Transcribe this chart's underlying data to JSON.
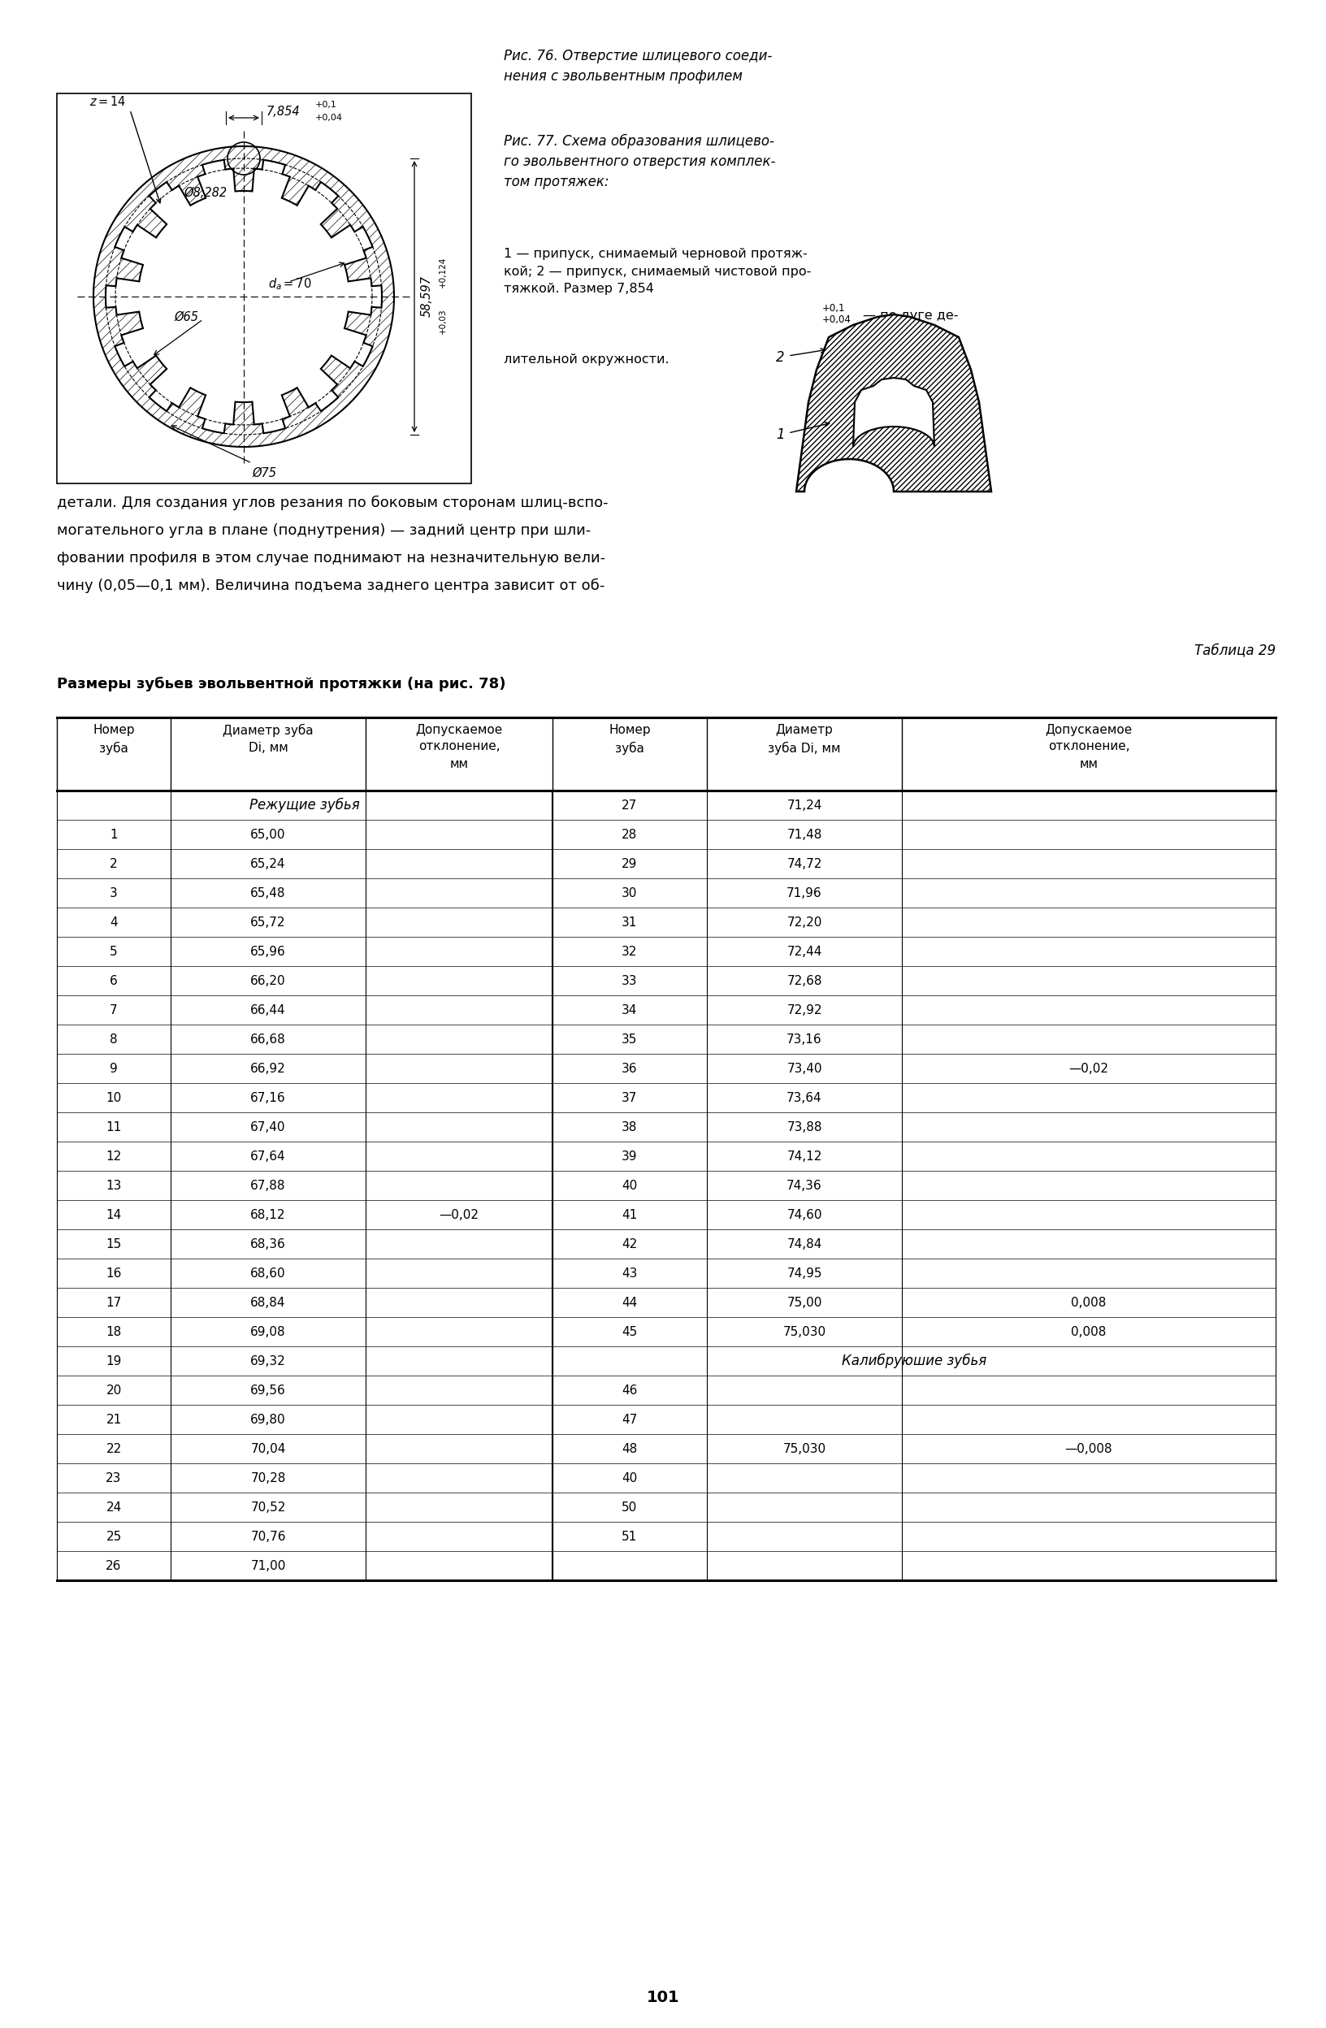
{
  "page_bg": "#ffffff",
  "fig_width": 16.32,
  "fig_height": 24.96,
  "fig76_title": "Рис. 76. Отверстие шлицевого соеди-\nнения с эвольвентным профилем",
  "fig77_title": "Рис. 77. Схема образования шлицево-\nго эвольвентного отверстия комплек-\nтом протяжек:",
  "fig77_body_1": "1",
  "fig77_body_2": " — припуск, снимаемый черновой протяж-\nкой; ",
  "fig77_body_3": "2",
  "fig77_body_4": " — припуск, снимаемый чистовой про-\nтяжкой. Размер 7,854",
  "fig77_body_5": " — по дуге де-\nлительной окружности.",
  "body_text_line1": "детали. Для создания углов резания по боковым сторонам шлиц-вспо-",
  "body_text_line2": "могательного угла в плане (поднутрения) — задний центр при шли-",
  "body_text_line3": "фовании профиля в этом случае поднимают на незначительную вели-",
  "body_text_line4": "чину (0,05—0,1 мм). Величина подъема заднего центра зависит от об-",
  "table_title_right": "Таблица 29",
  "table_heading": "Размеры зубьев эвольвентной протяжки (на рис. 78)",
  "col_h1a": "Номер",
  "col_h1b": "зуба",
  "col_h2a": "Диаметр зуба",
  "col_h2b": "Di, мм",
  "col_h3a": "Допускаемое",
  "col_h3b": "отклонение,",
  "col_h3c": "мм",
  "col_h4a": "Номер",
  "col_h4b": "зуба",
  "col_h5a": "Диаметр",
  "col_h5b": "зуба Di, мм",
  "col_h6a": "Допускаемое",
  "col_h6b": "отклонение,",
  "col_h6c": "мм",
  "left_section_label": "Режущие зубья",
  "right_section_label": "Калибруюшие зубья",
  "left_rows": [
    [
      "1",
      "65,00",
      ""
    ],
    [
      "2",
      "65,24",
      ""
    ],
    [
      "3",
      "65,48",
      ""
    ],
    [
      "4",
      "65,72",
      ""
    ],
    [
      "5",
      "65,96",
      ""
    ],
    [
      "6",
      "66,20",
      ""
    ],
    [
      "7",
      "66,44",
      ""
    ],
    [
      "8",
      "66,68",
      ""
    ],
    [
      "9",
      "66,92",
      ""
    ],
    [
      "10",
      "67,16",
      ""
    ],
    [
      "11",
      "67,40",
      ""
    ],
    [
      "12",
      "67,64",
      ""
    ],
    [
      "13",
      "67,88",
      ""
    ],
    [
      "14",
      "68,12",
      "—0,02"
    ],
    [
      "15",
      "68,36",
      ""
    ],
    [
      "16",
      "68,60",
      ""
    ],
    [
      "17",
      "68,84",
      ""
    ],
    [
      "18",
      "69,08",
      ""
    ],
    [
      "19",
      "69,32",
      ""
    ],
    [
      "20",
      "69,56",
      ""
    ],
    [
      "21",
      "69,80",
      ""
    ],
    [
      "22",
      "70,04",
      ""
    ],
    [
      "23",
      "70,28",
      ""
    ],
    [
      "24",
      "70,52",
      ""
    ],
    [
      "25",
      "70,76",
      ""
    ],
    [
      "26",
      "71,00",
      ""
    ]
  ],
  "right_rows": [
    [
      "27",
      "71,24",
      ""
    ],
    [
      "28",
      "71,48",
      ""
    ],
    [
      "29",
      "74,72",
      ""
    ],
    [
      "30",
      "71,96",
      ""
    ],
    [
      "31",
      "72,20",
      ""
    ],
    [
      "32",
      "72,44",
      ""
    ],
    [
      "33",
      "72,68",
      ""
    ],
    [
      "34",
      "72,92",
      ""
    ],
    [
      "35",
      "73,16",
      ""
    ],
    [
      "36",
      "73,40",
      "—0,02"
    ],
    [
      "37",
      "73,64",
      ""
    ],
    [
      "38",
      "73,88",
      ""
    ],
    [
      "39",
      "74,12",
      ""
    ],
    [
      "40",
      "74,36",
      ""
    ],
    [
      "41",
      "74,60",
      ""
    ],
    [
      "42",
      "74,84",
      ""
    ],
    [
      "43",
      "74,95",
      ""
    ],
    [
      "44",
      "75,00",
      "0,008"
    ],
    [
      "45",
      "75,030",
      "0,008"
    ]
  ],
  "calib_rows": [
    [
      "46",
      "",
      ""
    ],
    [
      "47",
      "",
      ""
    ],
    [
      "48",
      "75,030",
      "—0,008"
    ],
    [
      "40",
      "",
      ""
    ],
    [
      "50",
      "",
      ""
    ],
    [
      "51",
      "",
      ""
    ]
  ],
  "page_number": "101"
}
